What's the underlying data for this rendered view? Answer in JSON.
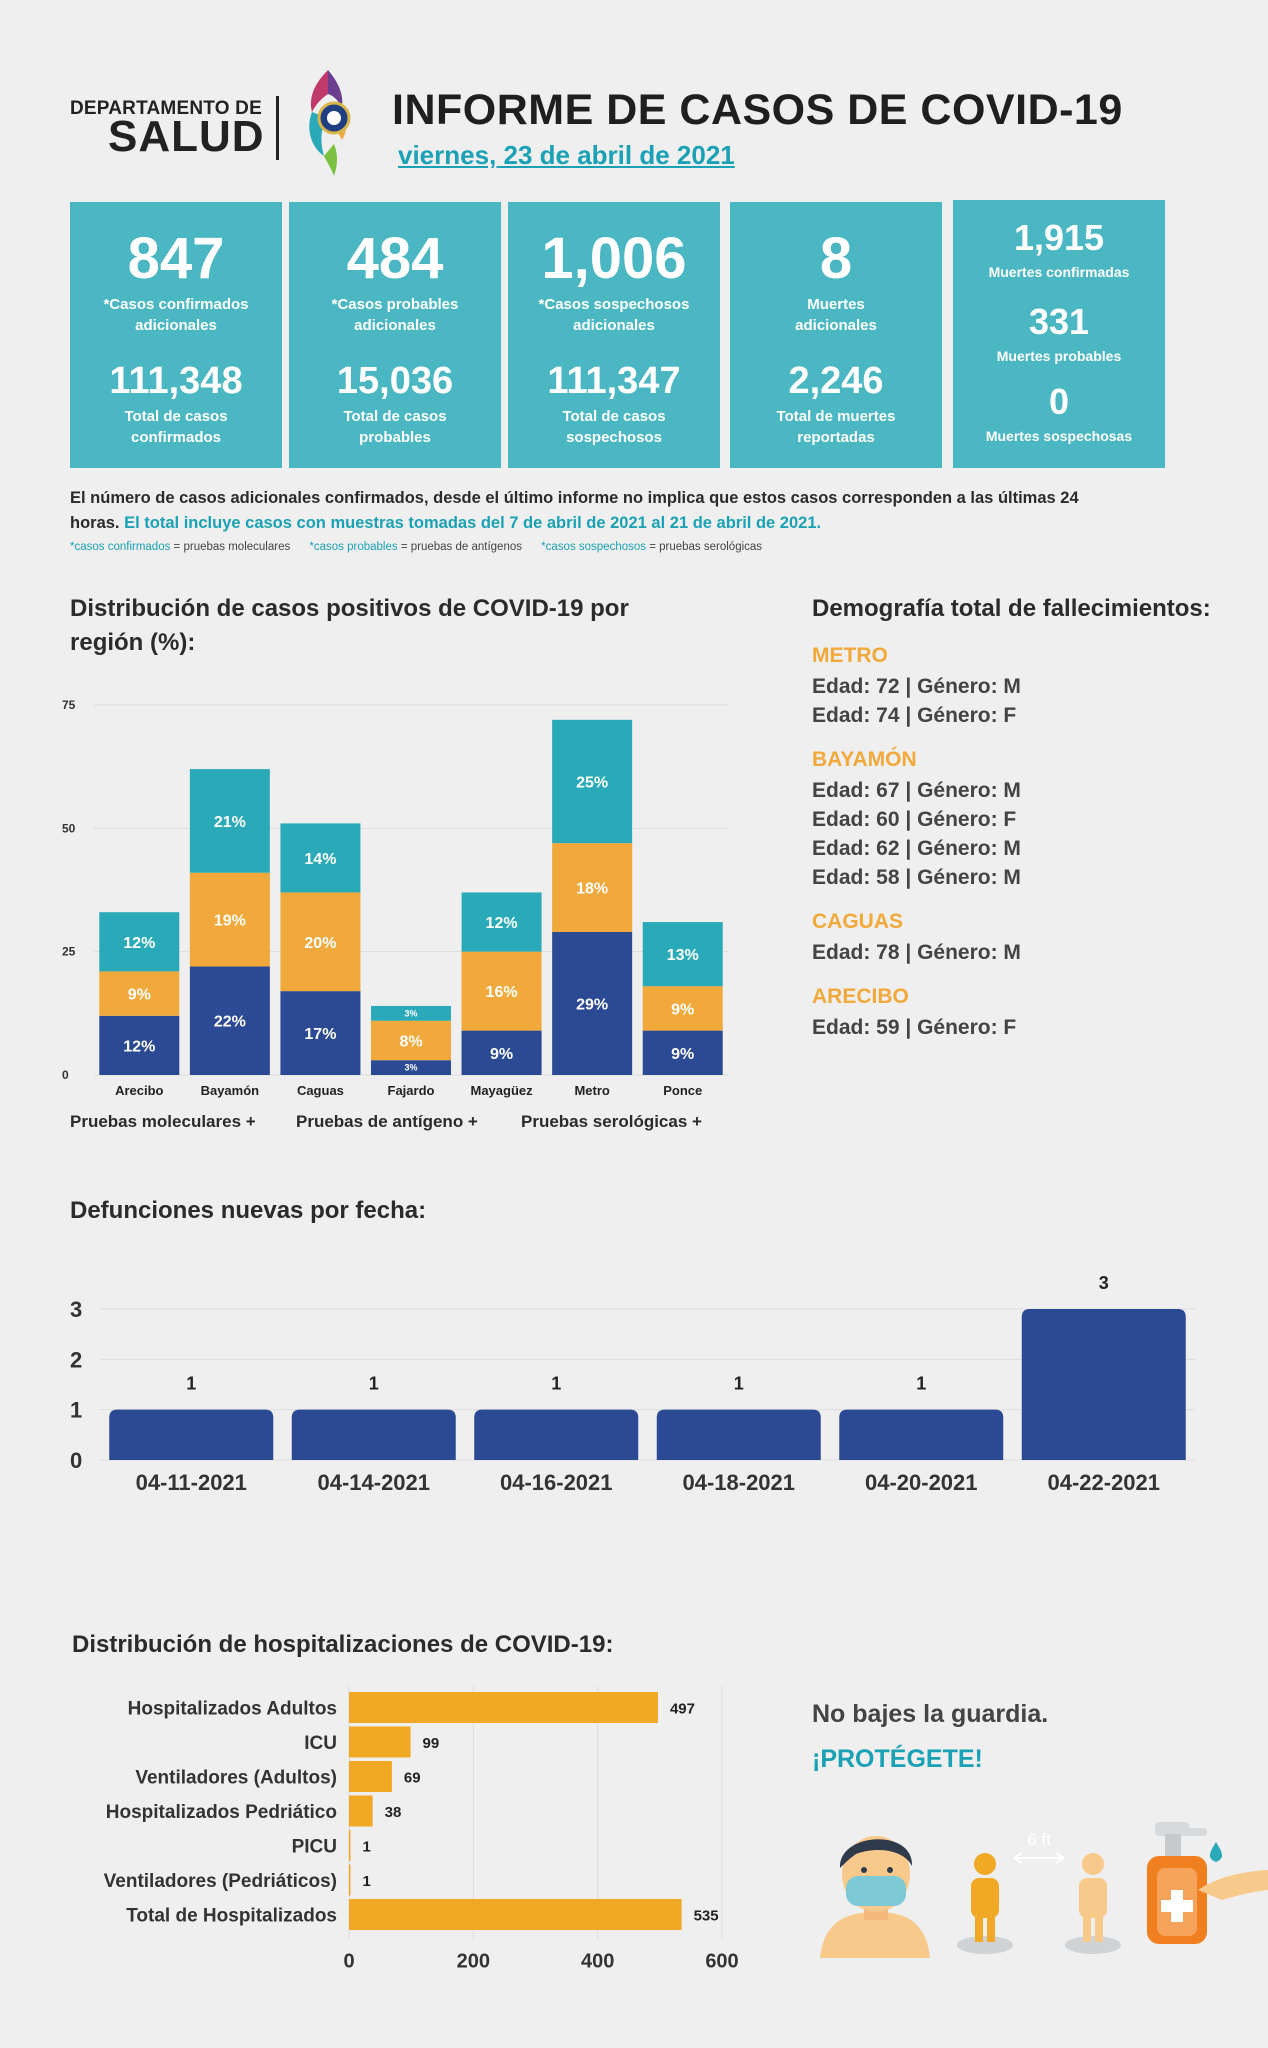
{
  "header": {
    "dept_top": "DEPARTAMENTO DE",
    "dept_big": "SALUD",
    "title": "INFORME DE CASOS DE COVID-19",
    "date": "viernes, 23 de abril de 2021"
  },
  "cards": [
    {
      "big": "847",
      "big_label": "*Casos confirmados\nadicionales",
      "mid": "111,348",
      "mid_label": "Total de casos\nconfirmados"
    },
    {
      "big": "484",
      "big_label": "*Casos probables\nadicionales",
      "mid": "15,036",
      "mid_label": "Total de casos\nprobables"
    },
    {
      "big": "1,006",
      "big_label": "*Casos sospechosos\nadicionales",
      "mid": "111,347",
      "mid_label": "Total de casos\nsospechosos"
    },
    {
      "big": "8",
      "big_label": "Muertes\nadicionales",
      "mid": "2,246",
      "mid_label": "Total de muertes\nreportadas"
    }
  ],
  "deaths_card": [
    {
      "value": "1,915",
      "label": "Muertes confirmadas"
    },
    {
      "value": "331",
      "label": "Muertes probables"
    },
    {
      "value": "0",
      "label": "Muertes sospechosas"
    }
  ],
  "note": {
    "text": "El número de casos adicionales confirmados, desde el último informe no implica que estos casos corresponden a las últimas 24 horas.",
    "highlight": "El total incluye casos con muestras tomadas del 7 de abril de 2021 al 21 de abril de 2021.",
    "def1_term": "*casos confirmados",
    "def1_rest": " = pruebas moleculares",
    "def2_term": "*casos probables",
    "def2_rest": " = pruebas de antígenos",
    "def3_term": "*casos sospechosos",
    "def3_rest": " = pruebas serológicas"
  },
  "region_chart_title": "Distribución de casos positivos de COVID-19 por región (%):",
  "demography": {
    "title": "Demografía total de fallecimientos:",
    "regions": [
      {
        "name": "METRO",
        "entries": [
          "Edad: 72 | Género: M",
          "Edad: 74 | Género: F"
        ]
      },
      {
        "name": "BAYAMÓN",
        "entries": [
          "Edad: 67 | Género: M",
          "Edad: 60 | Género: F",
          "Edad: 62 | Género: M",
          "Edad: 58 | Género: M"
        ]
      },
      {
        "name": "CAGUAS",
        "entries": [
          "Edad: 78 | Género: M"
        ]
      },
      {
        "name": "ARECIBO",
        "entries": [
          "Edad: 59 | Género: F"
        ]
      }
    ]
  },
  "deaths_chart_title": "Defunciones nuevas por fecha:",
  "hosp_chart_title": "Distribución de hospitalizaciones de COVID-19:",
  "tagline": "No bajes la guardia.",
  "tagline2": "¡PROTÉGETE!",
  "distance_label": "6 ft",
  "colors": {
    "molecular": "#2b4a93",
    "antigen": "#f0a93a",
    "serologic": "#2aaab8",
    "card": "#4ab7c3",
    "hosp": "#f0a825"
  },
  "chart_data": [
    {
      "type": "bar",
      "stacked": true,
      "categories": [
        "Arecibo",
        "Bayamón",
        "Caguas",
        "Fajardo",
        "Mayagüez",
        "Metro",
        "Ponce"
      ],
      "series": [
        {
          "name": "Pruebas moleculares +",
          "values": [
            12,
            22,
            17,
            3,
            9,
            29,
            9
          ],
          "labels": [
            "12%",
            "22%",
            "17%",
            "3%",
            "9%",
            "29%",
            "9%"
          ]
        },
        {
          "name": "Pruebas de antígeno +",
          "values": [
            9,
            19,
            20,
            8,
            16,
            18,
            9
          ],
          "labels": [
            "9%",
            "19%",
            "20%",
            "8%",
            "16%",
            "18%",
            "9%"
          ]
        },
        {
          "name": "Pruebas serológicas +",
          "values": [
            12,
            21,
            14,
            3,
            12,
            25,
            13
          ],
          "labels": [
            "12%",
            "21%",
            "14%",
            "3%",
            "12%",
            "25%",
            "13%"
          ]
        }
      ],
      "yticks": [
        "0",
        "25",
        "50",
        "75"
      ],
      "ylim": [
        0,
        75
      ],
      "legend": "bottom"
    },
    {
      "type": "bar",
      "categories": [
        "04-11-2021",
        "04-14-2021",
        "04-16-2021",
        "04-18-2021",
        "04-20-2021",
        "04-22-2021"
      ],
      "values": [
        1,
        1,
        1,
        1,
        1,
        3
      ],
      "labels": [
        "1",
        "1",
        "1",
        "1",
        "1",
        "3"
      ],
      "yticks": [
        "0",
        "1",
        "2",
        "3"
      ],
      "ylim": [
        0,
        3
      ]
    },
    {
      "type": "bar",
      "orientation": "horizontal",
      "categories": [
        "Hospitalizados Adultos",
        "ICU",
        "Ventiladores (Adultos)",
        "Hospitalizados Pedriático",
        "PICU",
        "Ventiladores (Pedriáticos)",
        "Total de Hospitalizados"
      ],
      "values": [
        497,
        99,
        69,
        38,
        1,
        1,
        535
      ],
      "labels": [
        "497",
        "99",
        "69",
        "38",
        "1",
        "1",
        "535"
      ],
      "xticks": [
        "0",
        "200",
        "400",
        "600"
      ],
      "xlim": [
        0,
        600
      ]
    }
  ]
}
